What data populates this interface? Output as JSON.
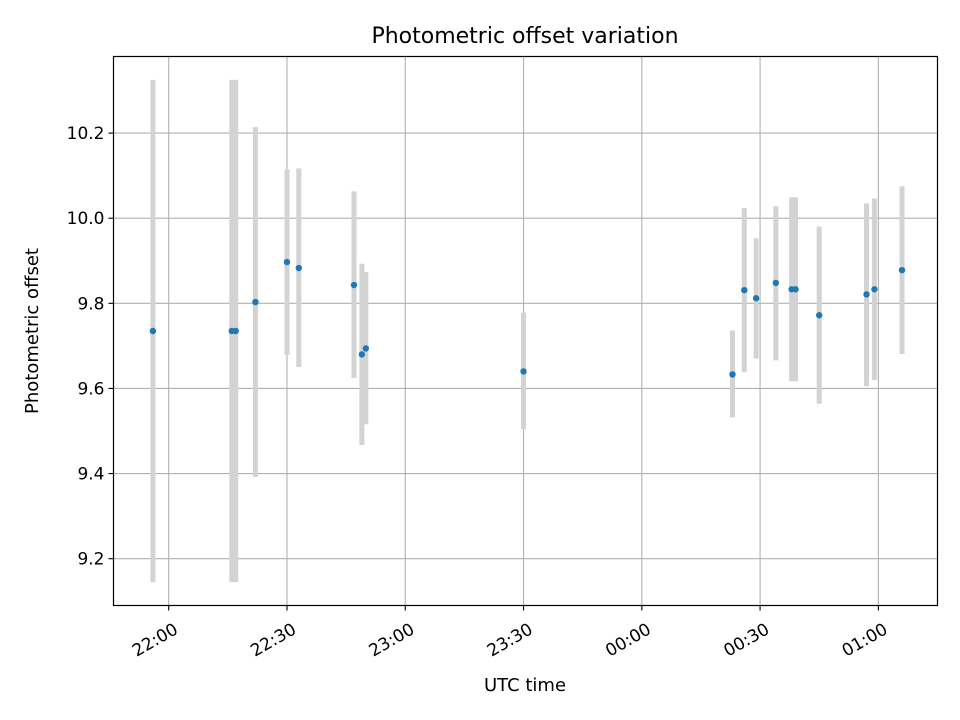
{
  "chart_data": {
    "type": "scatter",
    "title": "Photometric offset variation",
    "xlabel": "UTC time",
    "ylabel": "Photometric offset",
    "x_ticks": [
      "22:00",
      "22:30",
      "23:00",
      "23:30",
      "00:00",
      "00:30",
      "01:00"
    ],
    "y_ticks": [
      "9.2",
      "9.4",
      "9.6",
      "9.8",
      "10.0",
      "10.2"
    ],
    "xlim": [
      "21:46",
      "01:15"
    ],
    "ylim": [
      9.09,
      10.38
    ],
    "grid": true,
    "errorbar_color": "#d3d3d3",
    "marker_color": "#1f77b4",
    "points": [
      {
        "t": "21:56",
        "y": 9.735,
        "lo": 9.145,
        "hi": 10.325
      },
      {
        "t": "22:16",
        "y": 9.735,
        "lo": 9.145,
        "hi": 10.325
      },
      {
        "t": "22:17",
        "y": 9.735,
        "lo": 9.145,
        "hi": 10.325
      },
      {
        "t": "22:22",
        "y": 9.803,
        "lo": 9.392,
        "hi": 10.214
      },
      {
        "t": "22:30",
        "y": 9.897,
        "lo": 9.679,
        "hi": 10.115
      },
      {
        "t": "22:33",
        "y": 9.883,
        "lo": 9.65,
        "hi": 10.117
      },
      {
        "t": "22:47",
        "y": 9.843,
        "lo": 9.625,
        "hi": 10.063
      },
      {
        "t": "22:49",
        "y": 9.68,
        "lo": 9.467,
        "hi": 9.893
      },
      {
        "t": "22:50",
        "y": 9.694,
        "lo": 9.516,
        "hi": 9.874
      },
      {
        "t": "23:30",
        "y": 9.64,
        "lo": 9.504,
        "hi": 9.778
      },
      {
        "t": "00:23",
        "y": 9.633,
        "lo": 9.532,
        "hi": 9.736
      },
      {
        "t": "00:26",
        "y": 9.831,
        "lo": 9.638,
        "hi": 10.024
      },
      {
        "t": "00:29",
        "y": 9.812,
        "lo": 9.67,
        "hi": 9.953
      },
      {
        "t": "00:34",
        "y": 9.848,
        "lo": 9.666,
        "hi": 10.028
      },
      {
        "t": "00:38",
        "y": 9.833,
        "lo": 9.617,
        "hi": 10.049
      },
      {
        "t": "00:39",
        "y": 9.833,
        "lo": 9.617,
        "hi": 10.049
      },
      {
        "t": "00:45",
        "y": 9.772,
        "lo": 9.564,
        "hi": 9.98
      },
      {
        "t": "00:57",
        "y": 9.821,
        "lo": 9.605,
        "hi": 10.035
      },
      {
        "t": "00:59",
        "y": 9.833,
        "lo": 9.62,
        "hi": 10.046
      },
      {
        "t": "01:06",
        "y": 9.878,
        "lo": 9.681,
        "hi": 10.075
      }
    ]
  }
}
